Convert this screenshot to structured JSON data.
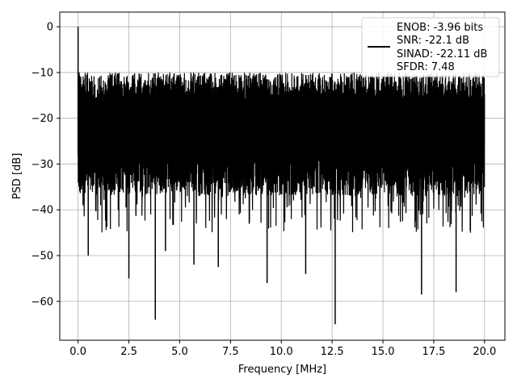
{
  "chart_data": {
    "type": "line",
    "title": "",
    "xlabel": "Frequency [MHz]",
    "ylabel": "PSD [dB]",
    "xlim": [
      -0.9,
      21.0
    ],
    "ylim": [
      -68.5,
      3.2
    ],
    "xticks": [
      0.0,
      2.5,
      5.0,
      7.5,
      10.0,
      12.5,
      15.0,
      17.5,
      20.0
    ],
    "xtick_labels": [
      "0.0",
      "2.5",
      "5.0",
      "7.5",
      "10.0",
      "12.5",
      "15.0",
      "17.5",
      "20.0"
    ],
    "yticks": [
      0,
      -10,
      -20,
      -30,
      -40,
      -50,
      -60
    ],
    "ytick_labels": [
      "0",
      "−10",
      "−20",
      "−30",
      "−40",
      "−50",
      "−60"
    ],
    "grid": true,
    "legend_position": "top-right",
    "series": [
      {
        "color": "#000000",
        "legend_lines": [
          "ENOB: -3.96 bits",
          "SNR: -22.1 dB",
          "SINAD: -22.11 dB",
          "SFDR: 7.48"
        ],
        "x_range": [
          0.0,
          20.0
        ],
        "noise_floor_band": [
          -35,
          -13
        ],
        "peaks": [
          {
            "x": 0.0,
            "y": 0
          },
          {
            "x": 0.05,
            "y": -10
          }
        ],
        "dips": [
          {
            "x": 0.5,
            "y": -50
          },
          {
            "x": 2.5,
            "y": -55
          },
          {
            "x": 3.8,
            "y": -64
          },
          {
            "x": 4.3,
            "y": -49
          },
          {
            "x": 5.7,
            "y": -52
          },
          {
            "x": 6.9,
            "y": -52.5
          },
          {
            "x": 9.3,
            "y": -56
          },
          {
            "x": 11.2,
            "y": -54
          },
          {
            "x": 12.65,
            "y": -65
          },
          {
            "x": 16.9,
            "y": -58.5
          },
          {
            "x": 18.6,
            "y": -58
          }
        ]
      }
    ]
  }
}
